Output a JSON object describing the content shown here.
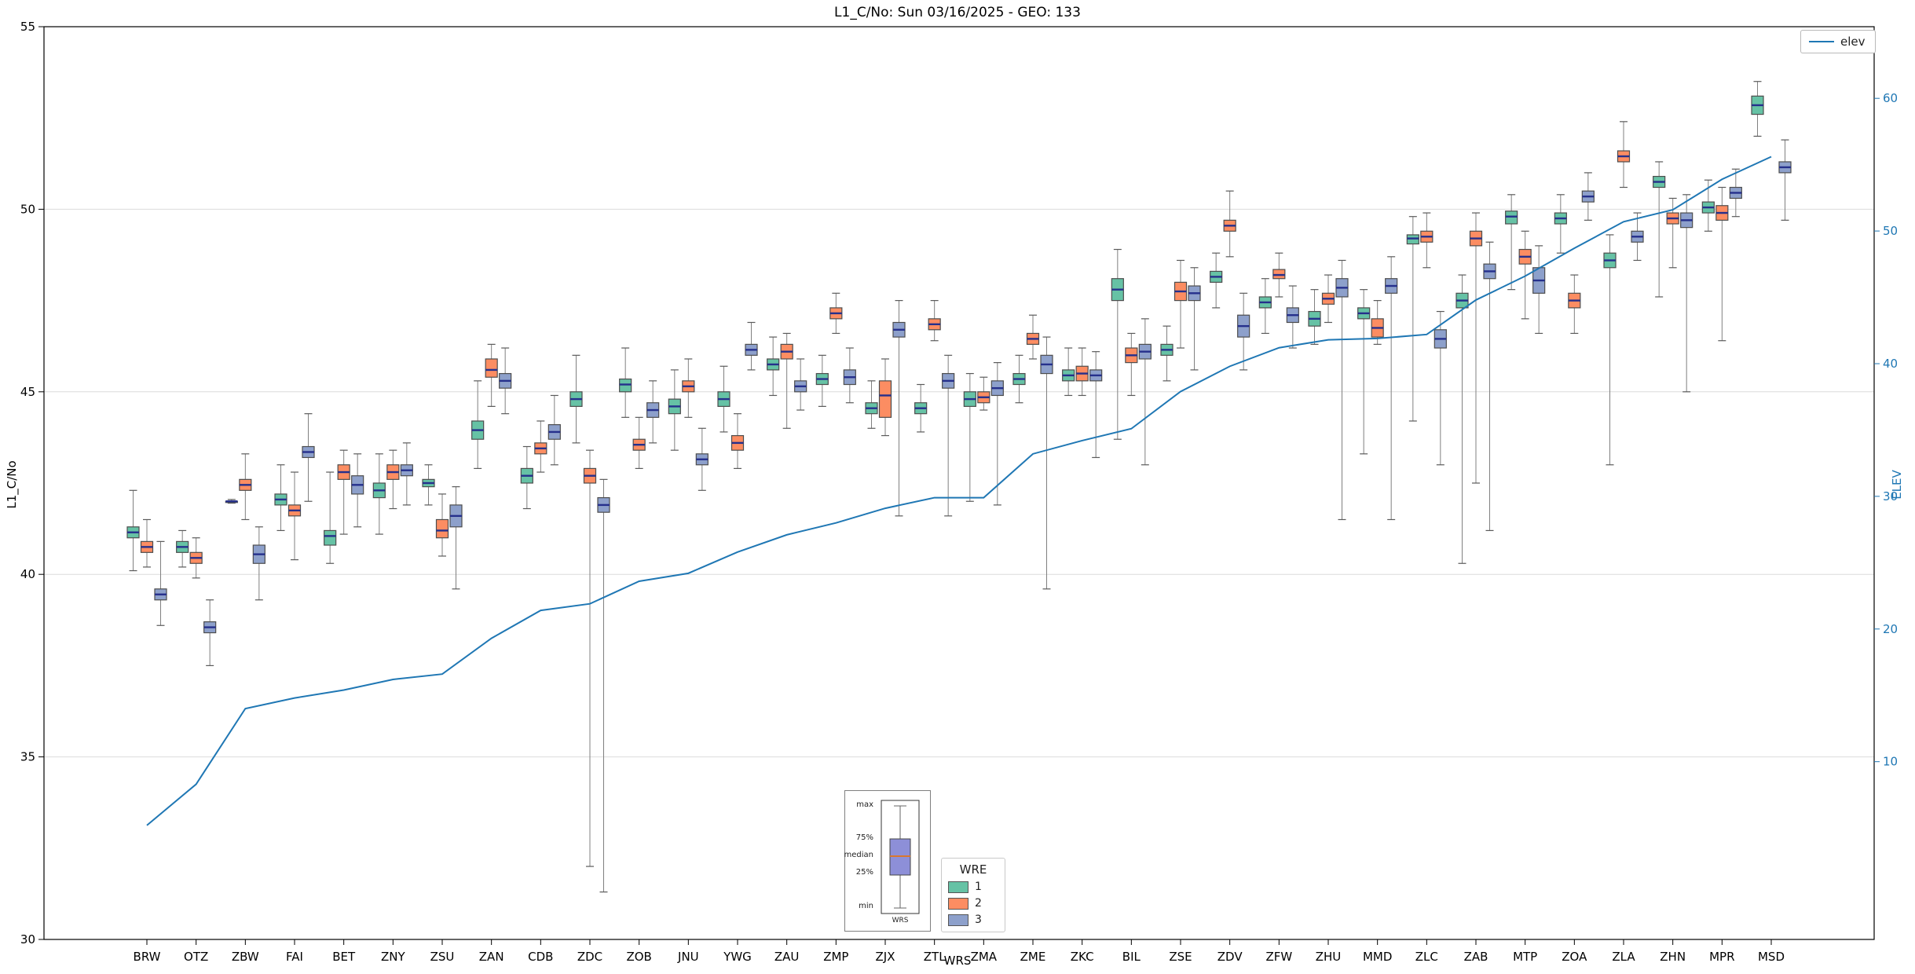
{
  "title": "L1_C/No: Sun 03/16/2025 - GEO: 133",
  "axes": {
    "left_label": "L1_C/No",
    "right_label": "ELEV",
    "x_label": "WRS",
    "yticks_left": [
      30,
      35,
      40,
      45,
      50,
      55
    ],
    "yticks_right": [
      10,
      20,
      30,
      40,
      50,
      60
    ],
    "right_axis_color": "#1f77b4"
  },
  "legend_elev": {
    "label": "elev",
    "line_color": "#1f77b4"
  },
  "wre": {
    "title": "WRE",
    "entries": [
      {
        "label": "1",
        "color": "#66c2a5"
      },
      {
        "label": "2",
        "color": "#fc8d62"
      },
      {
        "label": "3",
        "color": "#8da0cb"
      }
    ]
  },
  "inset": {
    "labels": [
      "max",
      "75%",
      "median",
      "25%",
      "min"
    ],
    "axis_label": "WRS",
    "box_color": "#8d8fd8",
    "median_color": "#d9772e"
  },
  "chart_data": {
    "type": "boxplot+line",
    "title": "L1_C/No: Sun 03/16/2025 - GEO: 133",
    "xlabel": "WRS",
    "ylabel_left": "L1_C/No",
    "ylabel_right": "ELEV",
    "ylim_left": [
      30,
      55
    ],
    "ylim_right": [
      -3.4,
      65.4
    ],
    "yticks_left": [
      30,
      35,
      40,
      45,
      50,
      55
    ],
    "yticks_right": [
      10,
      20,
      30,
      40,
      50,
      60
    ],
    "grid_values": [
      35,
      40,
      45,
      50
    ],
    "median_color": "#26308c",
    "box_edge_color": "#4d4d4d",
    "whisker_color": "#808080",
    "box_format": [
      "min",
      "q1",
      "median",
      "q3",
      "max"
    ],
    "categories": [
      "BRW",
      "OTZ",
      "ZBW",
      "FAI",
      "BET",
      "ZNY",
      "ZSU",
      "ZAN",
      "CDB",
      "ZDC",
      "ZOB",
      "JNU",
      "YWG",
      "ZAU",
      "ZMP",
      "ZJX",
      "ZTL",
      "ZMA",
      "ZME",
      "ZKC",
      "BIL",
      "ZSE",
      "ZDV",
      "ZFW",
      "ZHU",
      "MMD",
      "ZLC",
      "ZAB",
      "MTP",
      "ZOA",
      "ZLA",
      "ZHN",
      "MPR",
      "MSD"
    ],
    "series": [
      {
        "name": "1",
        "color": "#66c2a5",
        "values": [
          [
            40.1,
            41.0,
            41.15,
            41.3,
            42.3
          ],
          [
            40.2,
            40.6,
            40.75,
            40.9,
            41.2
          ],
          [
            41.95,
            42.0,
            42.0,
            42.0,
            42.05
          ],
          [
            41.2,
            41.9,
            42.05,
            42.2,
            43.0
          ],
          [
            40.3,
            40.8,
            41.05,
            41.2,
            42.8
          ],
          [
            41.1,
            42.1,
            42.3,
            42.5,
            43.3
          ],
          [
            41.9,
            42.4,
            42.5,
            42.6,
            43.0
          ],
          [
            42.9,
            43.7,
            43.95,
            44.2,
            45.3
          ],
          [
            41.8,
            42.5,
            42.7,
            42.9,
            43.5
          ],
          [
            43.6,
            44.6,
            44.8,
            45.0,
            46.0
          ],
          [
            44.3,
            45.0,
            45.2,
            45.35,
            46.2
          ],
          [
            43.4,
            44.4,
            44.6,
            44.8,
            45.6
          ],
          [
            43.9,
            44.6,
            44.8,
            45.0,
            45.7
          ],
          [
            44.9,
            45.6,
            45.75,
            45.9,
            46.5
          ],
          [
            44.6,
            45.2,
            45.35,
            45.5,
            46.0
          ],
          [
            44.0,
            44.4,
            44.55,
            44.7,
            45.3
          ],
          [
            43.9,
            44.4,
            44.55,
            44.7,
            45.2
          ],
          [
            42.0,
            44.6,
            44.8,
            45.0,
            45.5
          ],
          [
            44.7,
            45.2,
            45.35,
            45.5,
            46.0
          ],
          [
            44.9,
            45.3,
            45.45,
            45.6,
            46.2
          ],
          [
            43.7,
            47.5,
            47.8,
            48.1,
            48.9
          ],
          [
            45.3,
            46.0,
            46.15,
            46.3,
            46.8
          ],
          [
            47.3,
            48.0,
            48.15,
            48.3,
            48.8
          ],
          [
            46.6,
            47.3,
            47.45,
            47.6,
            48.1
          ],
          [
            46.3,
            46.8,
            47.0,
            47.2,
            47.8
          ],
          [
            43.3,
            47.0,
            47.15,
            47.3,
            47.8
          ],
          [
            44.2,
            49.05,
            49.2,
            49.3,
            49.8
          ],
          [
            40.3,
            47.3,
            47.5,
            47.7,
            48.2
          ],
          [
            47.8,
            49.6,
            49.8,
            49.95,
            50.4
          ],
          [
            48.8,
            49.6,
            49.75,
            49.9,
            50.4
          ],
          [
            43.0,
            48.4,
            48.6,
            48.8,
            49.3
          ],
          [
            47.6,
            50.6,
            50.75,
            50.9,
            51.3
          ],
          [
            49.4,
            49.9,
            50.05,
            50.2,
            50.8
          ],
          [
            52.0,
            52.6,
            52.85,
            53.1,
            53.5
          ]
        ]
      },
      {
        "name": "2",
        "color": "#fc8d62",
        "values": [
          [
            40.2,
            40.6,
            40.75,
            40.9,
            41.5
          ],
          [
            39.9,
            40.3,
            40.45,
            40.6,
            41.0
          ],
          [
            41.5,
            42.3,
            42.45,
            42.6,
            43.3
          ],
          [
            40.4,
            41.6,
            41.75,
            41.9,
            42.8
          ],
          [
            41.1,
            42.6,
            42.8,
            43.0,
            43.4
          ],
          [
            41.8,
            42.6,
            42.8,
            43.0,
            43.4
          ],
          [
            40.5,
            41.0,
            41.2,
            41.5,
            42.2
          ],
          [
            44.6,
            45.4,
            45.6,
            45.9,
            46.3
          ],
          [
            42.8,
            43.3,
            43.45,
            43.6,
            44.2
          ],
          [
            32.0,
            42.5,
            42.7,
            42.9,
            43.4
          ],
          [
            42.9,
            43.4,
            43.55,
            43.7,
            44.3
          ],
          [
            44.3,
            45.0,
            45.15,
            45.3,
            45.9
          ],
          [
            42.9,
            43.4,
            43.6,
            43.8,
            44.4
          ],
          [
            44.0,
            45.9,
            46.1,
            46.3,
            46.6
          ],
          [
            46.6,
            47.0,
            47.15,
            47.3,
            47.7
          ],
          [
            43.8,
            44.3,
            44.9,
            45.3,
            45.9
          ],
          [
            46.4,
            46.7,
            46.85,
            47.0,
            47.5
          ],
          [
            44.5,
            44.7,
            44.85,
            45.0,
            45.4
          ],
          [
            45.9,
            46.3,
            46.45,
            46.6,
            47.1
          ],
          [
            44.9,
            45.3,
            45.5,
            45.7,
            46.2
          ],
          [
            44.9,
            45.8,
            46.0,
            46.2,
            46.6
          ],
          [
            46.2,
            47.5,
            47.75,
            48.0,
            48.6
          ],
          [
            48.7,
            49.4,
            49.55,
            49.7,
            50.5
          ],
          [
            47.6,
            48.1,
            48.2,
            48.35,
            48.8
          ],
          [
            46.9,
            47.4,
            47.55,
            47.7,
            48.2
          ],
          [
            46.3,
            46.5,
            46.75,
            47.0,
            47.5
          ],
          [
            48.4,
            49.1,
            49.25,
            49.4,
            49.9
          ],
          [
            42.5,
            49.0,
            49.2,
            49.4,
            49.9
          ],
          [
            47.0,
            48.5,
            48.7,
            48.9,
            49.4
          ],
          [
            46.6,
            47.3,
            47.5,
            47.7,
            48.2
          ],
          [
            50.6,
            51.3,
            51.45,
            51.6,
            52.4
          ],
          [
            48.4,
            49.6,
            49.75,
            49.9,
            50.3
          ],
          [
            46.4,
            49.7,
            49.9,
            50.1,
            50.6
          ],
          null
        ]
      },
      {
        "name": "3",
        "color": "#8da0cb",
        "values": [
          [
            38.6,
            39.3,
            39.45,
            39.6,
            40.9
          ],
          [
            37.5,
            38.4,
            38.55,
            38.7,
            39.3
          ],
          [
            39.3,
            40.3,
            40.55,
            40.8,
            41.3
          ],
          [
            42.0,
            43.2,
            43.35,
            43.5,
            44.4
          ],
          [
            41.3,
            42.2,
            42.45,
            42.7,
            43.3
          ],
          [
            41.9,
            42.7,
            42.85,
            43.0,
            43.6
          ],
          [
            39.6,
            41.3,
            41.6,
            41.9,
            42.4
          ],
          [
            44.4,
            45.1,
            45.3,
            45.5,
            46.2
          ],
          [
            43.0,
            43.7,
            43.9,
            44.1,
            44.9
          ],
          [
            31.3,
            41.7,
            41.9,
            42.1,
            42.6
          ],
          [
            43.6,
            44.3,
            44.5,
            44.7,
            45.3
          ],
          [
            42.3,
            43.0,
            43.15,
            43.3,
            44.0
          ],
          [
            45.6,
            46.0,
            46.15,
            46.3,
            46.9
          ],
          [
            44.5,
            45.0,
            45.15,
            45.3,
            45.9
          ],
          [
            44.7,
            45.2,
            45.4,
            45.6,
            46.2
          ],
          [
            41.6,
            46.5,
            46.7,
            46.9,
            47.5
          ],
          [
            41.6,
            45.1,
            45.3,
            45.5,
            46.0
          ],
          [
            41.9,
            44.9,
            45.1,
            45.3,
            45.8
          ],
          [
            39.6,
            45.5,
            45.75,
            46.0,
            46.5
          ],
          [
            43.2,
            45.3,
            45.45,
            45.6,
            46.1
          ],
          [
            43.0,
            45.9,
            46.1,
            46.3,
            47.0
          ],
          [
            45.6,
            47.5,
            47.7,
            47.9,
            48.4
          ],
          [
            45.6,
            46.5,
            46.8,
            47.1,
            47.7
          ],
          [
            46.2,
            46.9,
            47.1,
            47.3,
            47.9
          ],
          [
            41.5,
            47.6,
            47.85,
            48.1,
            48.6
          ],
          [
            41.5,
            47.7,
            47.9,
            48.1,
            48.7
          ],
          [
            43.0,
            46.2,
            46.45,
            46.7,
            47.2
          ],
          [
            41.2,
            48.1,
            48.3,
            48.5,
            49.1
          ],
          [
            46.6,
            47.7,
            48.05,
            48.4,
            49.0
          ],
          [
            49.7,
            50.2,
            50.35,
            50.5,
            51.0
          ],
          [
            48.6,
            49.1,
            49.25,
            49.4,
            49.9
          ],
          [
            45.0,
            49.5,
            49.7,
            49.9,
            50.4
          ],
          [
            49.8,
            50.3,
            50.45,
            50.6,
            51.1
          ],
          [
            49.7,
            51.0,
            51.15,
            51.3,
            51.9
          ]
        ]
      }
    ],
    "line": {
      "name": "elev",
      "axis": "right",
      "color": "#1f77b4",
      "values": [
        5.2,
        8.3,
        14.0,
        14.8,
        15.4,
        16.2,
        16.6,
        19.3,
        21.4,
        21.9,
        23.6,
        24.2,
        25.8,
        27.1,
        28.0,
        29.1,
        29.9,
        29.9,
        33.2,
        34.2,
        35.1,
        37.9,
        39.8,
        41.2,
        41.8,
        41.9,
        42.2,
        44.8,
        46.6,
        48.7,
        50.7,
        51.6,
        53.9,
        55.6
      ]
    },
    "legend": {
      "line": "elev",
      "boxes_title": "WRE",
      "boxes": [
        "1",
        "2",
        "3"
      ],
      "position": "line: upper right; boxes: lower center"
    }
  }
}
